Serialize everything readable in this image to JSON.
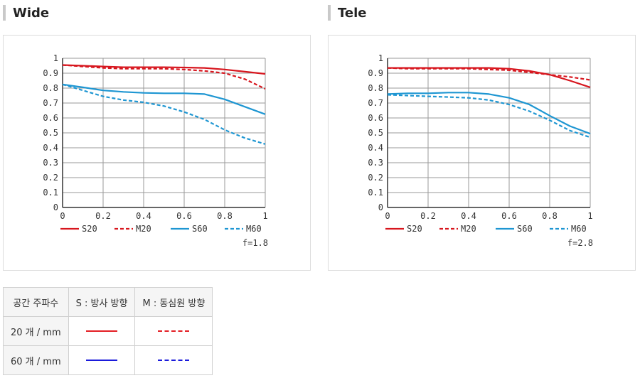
{
  "sections": [
    {
      "title": "Wide"
    },
    {
      "title": "Tele"
    }
  ],
  "chart_data": [
    {
      "type": "line",
      "title": "Wide",
      "xlim": [
        0,
        1
      ],
      "ylim": [
        0,
        1
      ],
      "x_ticks": [
        "0",
        "0.2",
        "0.4",
        "0.6",
        "0.8",
        "1"
      ],
      "y_ticks": [
        "0",
        "0.1",
        "0.2",
        "0.3",
        "0.4",
        "0.5",
        "0.6",
        "0.7",
        "0.8",
        "0.9",
        "1"
      ],
      "grid": true,
      "legend_position": "bottom",
      "aperture_label": "f=1.8",
      "series": [
        {
          "name": "S20",
          "color": "#d7161e",
          "dash": "solid",
          "x": [
            0,
            0.1,
            0.2,
            0.3,
            0.4,
            0.5,
            0.6,
            0.7,
            0.8,
            0.9,
            1
          ],
          "y": [
            0.955,
            0.95,
            0.945,
            0.94,
            0.94,
            0.94,
            0.938,
            0.935,
            0.925,
            0.91,
            0.895
          ]
        },
        {
          "name": "M20",
          "color": "#d7161e",
          "dash": "dashed",
          "x": [
            0,
            0.1,
            0.2,
            0.3,
            0.4,
            0.5,
            0.6,
            0.7,
            0.8,
            0.9,
            1
          ],
          "y": [
            0.955,
            0.945,
            0.935,
            0.93,
            0.93,
            0.93,
            0.925,
            0.915,
            0.9,
            0.86,
            0.795
          ]
        },
        {
          "name": "S60",
          "color": "#1e96d2",
          "dash": "solid",
          "x": [
            0,
            0.1,
            0.2,
            0.3,
            0.4,
            0.5,
            0.6,
            0.7,
            0.8,
            0.9,
            1
          ],
          "y": [
            0.825,
            0.805,
            0.785,
            0.775,
            0.768,
            0.765,
            0.765,
            0.76,
            0.725,
            0.675,
            0.625
          ]
        },
        {
          "name": "M60",
          "color": "#1e96d2",
          "dash": "dashed",
          "x": [
            0,
            0.1,
            0.2,
            0.3,
            0.4,
            0.5,
            0.6,
            0.7,
            0.8,
            0.9,
            1
          ],
          "y": [
            0.825,
            0.785,
            0.745,
            0.72,
            0.705,
            0.68,
            0.64,
            0.59,
            0.52,
            0.465,
            0.425
          ]
        }
      ]
    },
    {
      "type": "line",
      "title": "Tele",
      "xlim": [
        0,
        1
      ],
      "ylim": [
        0,
        1
      ],
      "x_ticks": [
        "0",
        "0.2",
        "0.4",
        "0.6",
        "0.8",
        "1"
      ],
      "y_ticks": [
        "0",
        "0.1",
        "0.2",
        "0.3",
        "0.4",
        "0.5",
        "0.6",
        "0.7",
        "0.8",
        "0.9",
        "1"
      ],
      "grid": true,
      "legend_position": "bottom",
      "aperture_label": "f=2.8",
      "series": [
        {
          "name": "S20",
          "color": "#d7161e",
          "dash": "solid",
          "x": [
            0,
            0.1,
            0.2,
            0.3,
            0.4,
            0.5,
            0.6,
            0.7,
            0.8,
            0.9,
            1
          ],
          "y": [
            0.935,
            0.935,
            0.935,
            0.935,
            0.935,
            0.935,
            0.93,
            0.915,
            0.89,
            0.85,
            0.805
          ]
        },
        {
          "name": "M20",
          "color": "#d7161e",
          "dash": "dashed",
          "x": [
            0,
            0.1,
            0.2,
            0.3,
            0.4,
            0.5,
            0.6,
            0.7,
            0.8,
            0.9,
            1
          ],
          "y": [
            0.935,
            0.93,
            0.93,
            0.93,
            0.93,
            0.925,
            0.92,
            0.905,
            0.89,
            0.875,
            0.855
          ]
        },
        {
          "name": "S60",
          "color": "#1e96d2",
          "dash": "solid",
          "x": [
            0,
            0.1,
            0.2,
            0.3,
            0.4,
            0.5,
            0.6,
            0.7,
            0.8,
            0.9,
            1
          ],
          "y": [
            0.76,
            0.765,
            0.765,
            0.77,
            0.77,
            0.76,
            0.735,
            0.69,
            0.615,
            0.545,
            0.495
          ]
        },
        {
          "name": "M60",
          "color": "#1e96d2",
          "dash": "dashed",
          "x": [
            0,
            0.1,
            0.2,
            0.3,
            0.4,
            0.5,
            0.6,
            0.7,
            0.8,
            0.9,
            1
          ],
          "y": [
            0.755,
            0.75,
            0.745,
            0.74,
            0.735,
            0.72,
            0.69,
            0.645,
            0.585,
            0.515,
            0.47
          ]
        }
      ]
    }
  ],
  "legend_table": {
    "headers": [
      "공간 주파수",
      "S : 방사 방향",
      "M : 동심원 방향"
    ],
    "rows": [
      {
        "label": "20 개 / mm",
        "s_color": "#e31e24",
        "m_color": "#e31e24"
      },
      {
        "label": "60 개 / mm",
        "s_color": "#1a1adb",
        "m_color": "#1a1adb"
      }
    ]
  }
}
